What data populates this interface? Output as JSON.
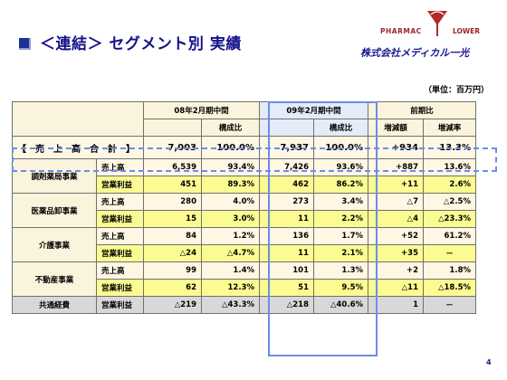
{
  "title": "＜連結＞ セグメント別 実績",
  "logo": {
    "line1": "PHARMAC",
    "line2": "LOWER",
    "company": "株式会社メディカル一光"
  },
  "unit": "（単位：百万円）",
  "page_number": "4",
  "header": {
    "period1": "08年2月期中間",
    "period2": "09年2月期中間",
    "diff": "前期比",
    "ratio": "構成比",
    "amount": "増減額",
    "rate": "増減率"
  },
  "total": {
    "label": "【　売　上　高　合　計　】",
    "v08": "7,003",
    "r08": "100.0%",
    "v09": "7,937",
    "r09": "100.0%",
    "diff": "+934",
    "rate": "13.3%"
  },
  "segments": [
    {
      "name": "調剤薬局事業",
      "rows": [
        {
          "metric": "売上高",
          "v08": "6,539",
          "r08": "93.4%",
          "v09": "7,426",
          "r09": "93.6%",
          "diff": "+887",
          "rate": "13.6%"
        },
        {
          "metric": "営業利益",
          "v08": "451",
          "r08": "89.3%",
          "v09": "462",
          "r09": "86.2%",
          "diff": "+11",
          "rate": "2.6%"
        }
      ]
    },
    {
      "name": "医薬品卸事業",
      "rows": [
        {
          "metric": "売上高",
          "v08": "280",
          "r08": "4.0%",
          "v09": "273",
          "r09": "3.4%",
          "diff": "△7",
          "rate": "△2.5%"
        },
        {
          "metric": "営業利益",
          "v08": "15",
          "r08": "3.0%",
          "v09": "11",
          "r09": "2.2%",
          "diff": "△4",
          "rate": "△23.3%"
        }
      ]
    },
    {
      "name": "介護事業",
      "rows": [
        {
          "metric": "売上高",
          "v08": "84",
          "r08": "1.2%",
          "v09": "136",
          "r09": "1.7%",
          "diff": "+52",
          "rate": "61.2%"
        },
        {
          "metric": "営業利益",
          "v08": "△24",
          "r08": "△4.7%",
          "v09": "11",
          "r09": "2.1%",
          "diff": "+35",
          "rate": "－"
        }
      ]
    },
    {
      "name": "不動産事業",
      "rows": [
        {
          "metric": "売上高",
          "v08": "99",
          "r08": "1.4%",
          "v09": "101",
          "r09": "1.3%",
          "diff": "+2",
          "rate": "1.8%"
        },
        {
          "metric": "営業利益",
          "v08": "62",
          "r08": "12.3%",
          "v09": "51",
          "r09": "9.5%",
          "diff": "△11",
          "rate": "△18.5%"
        }
      ]
    }
  ],
  "common": {
    "name": "共通経費",
    "metric": "営業利益",
    "v08": "△219",
    "r08": "△43.3%",
    "v09": "△218",
    "r09": "△40.6%",
    "diff": "1",
    "rate": "－"
  }
}
